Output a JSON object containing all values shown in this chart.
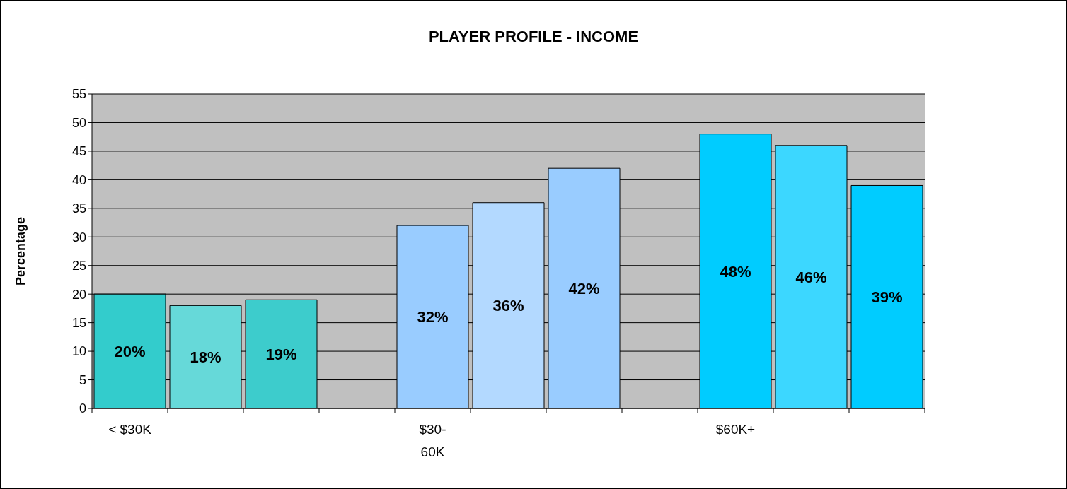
{
  "chart_data": {
    "type": "bar",
    "title": "PLAYER PROFILE - INCOME",
    "ylabel": "Percentage",
    "categories": [
      "< $30K",
      null,
      null,
      null,
      "$30-60K",
      null,
      null,
      null,
      "$60K+",
      null,
      null
    ],
    "values": [
      20,
      18,
      19,
      null,
      32,
      36,
      42,
      null,
      48,
      46,
      39
    ],
    "colors": [
      "#33cccc",
      "#66d9d9",
      "#3dcccc",
      null,
      "#99ccff",
      "#b3d9ff",
      "#99ccff",
      null,
      "#00ccff",
      "#3cd7ff",
      "#00ccff"
    ],
    "value_labels": [
      "20%",
      "18%",
      "19%",
      null,
      "32%",
      "36%",
      "42%",
      null,
      "48%",
      "46%",
      "39%"
    ],
    "ylim": [
      0,
      55
    ],
    "yticks": [
      0,
      5,
      10,
      15,
      20,
      25,
      30,
      35,
      40,
      45,
      50,
      55
    ],
    "grid": "y"
  }
}
